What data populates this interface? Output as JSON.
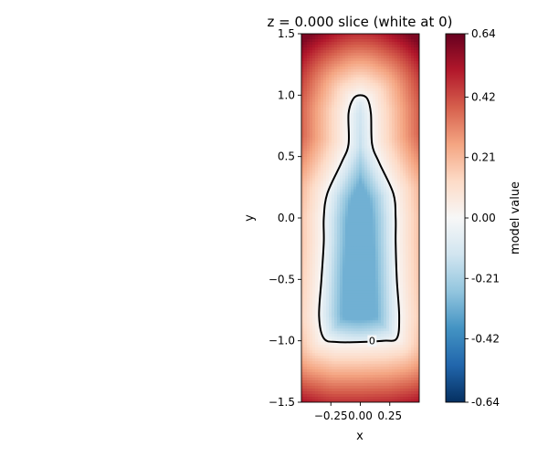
{
  "chart_data": {
    "type": "heatmap",
    "title": "z = 0.000 slice (white at 0)",
    "xlabel": "x",
    "ylabel": "y",
    "xlim": [
      -0.5,
      0.5
    ],
    "ylim": [
      -1.5,
      1.5
    ],
    "x_ticks": [
      {
        "value": -0.25,
        "label": "−0.25"
      },
      {
        "value": 0.0,
        "label": "0.00"
      },
      {
        "value": 0.25,
        "label": "0.25"
      }
    ],
    "y_ticks": [
      {
        "value": 1.5,
        "label": "1.5"
      },
      {
        "value": 1.0,
        "label": "1.0"
      },
      {
        "value": 0.5,
        "label": "0.5"
      },
      {
        "value": 0.0,
        "label": "0.0"
      },
      {
        "value": -0.5,
        "label": "−0.5"
      },
      {
        "value": -1.0,
        "label": "−1.0"
      },
      {
        "value": -1.5,
        "label": "−1.5"
      }
    ],
    "colormap": "RdBu_r",
    "colorbar": {
      "label": "model value",
      "range": [
        -0.64,
        0.64
      ],
      "ticks": [
        {
          "value": 0.64,
          "label": "0.64"
        },
        {
          "value": 0.42,
          "label": "0.42"
        },
        {
          "value": 0.21,
          "label": "0.21"
        },
        {
          "value": 0.0,
          "label": "0.00"
        },
        {
          "value": -0.21,
          "label": "-0.21"
        },
        {
          "value": -0.42,
          "label": "-0.42"
        },
        {
          "value": -0.64,
          "label": "-0.64"
        }
      ],
      "colors": [
        "#053061",
        "#2166ac",
        "#4393c3",
        "#92c5de",
        "#d1e5f0",
        "#f7f7f7",
        "#fddbc7",
        "#f4a582",
        "#d6604d",
        "#b2182b",
        "#67001f"
      ]
    },
    "contour": {
      "level": 0,
      "label": "0",
      "label_at": [
        0.1,
        -1.0
      ],
      "points": [
        [
          0.0,
          1.0
        ],
        [
          0.06,
          0.97
        ],
        [
          0.09,
          0.85
        ],
        [
          0.1,
          0.6
        ],
        [
          0.16,
          0.45
        ],
        [
          0.28,
          0.2
        ],
        [
          0.3,
          0.0
        ],
        [
          0.3,
          -0.2
        ],
        [
          0.31,
          -0.5
        ],
        [
          0.33,
          -0.8
        ],
        [
          0.31,
          -0.98
        ],
        [
          0.2,
          -1.0
        ],
        [
          0.0,
          -1.01
        ],
        [
          -0.2,
          -1.01
        ],
        [
          -0.31,
          -0.98
        ],
        [
          -0.35,
          -0.8
        ],
        [
          -0.33,
          -0.5
        ],
        [
          -0.31,
          -0.2
        ],
        [
          -0.31,
          0.0
        ],
        [
          -0.28,
          0.2
        ],
        [
          -0.16,
          0.45
        ],
        [
          -0.1,
          0.6
        ],
        [
          -0.1,
          0.85
        ],
        [
          -0.06,
          0.97
        ]
      ]
    }
  }
}
